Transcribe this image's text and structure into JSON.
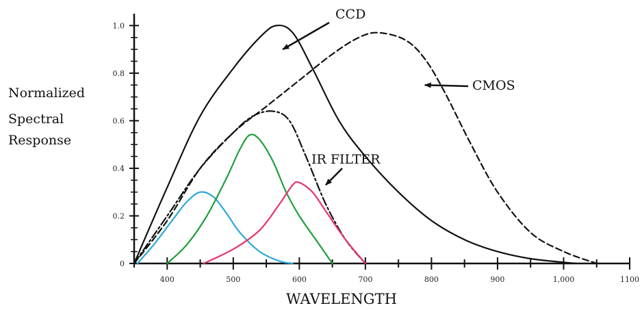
{
  "chart_data": {
    "type": "line",
    "title": "",
    "xlabel": "WAVELENGTH",
    "ylabel": [
      "Normalized",
      "Spectral",
      "Response"
    ],
    "xlim": [
      350,
      1100
    ],
    "ylim": [
      0,
      1.05
    ],
    "xticks": [
      400,
      500,
      600,
      700,
      800,
      900,
      1000,
      1100
    ],
    "xtick_labels": [
      "400",
      "500",
      "600",
      "700",
      "800",
      "900",
      "1,000",
      "1100"
    ],
    "yticks": [
      0,
      0.2,
      0.4,
      0.6,
      0.8,
      1.0
    ],
    "ytick_labels": [
      "0",
      "0.2",
      "0.4",
      "0.6",
      "0.8",
      "1.0"
    ],
    "grid": false,
    "series": [
      {
        "name": "CCD",
        "color": "#111111",
        "dash": "solid",
        "points": [
          [
            350,
            0
          ],
          [
            400,
            0.32
          ],
          [
            450,
            0.62
          ],
          [
            500,
            0.82
          ],
          [
            540,
            0.95
          ],
          [
            565,
            1.0
          ],
          [
            590,
            0.97
          ],
          [
            620,
            0.82
          ],
          [
            660,
            0.6
          ],
          [
            700,
            0.45
          ],
          [
            750,
            0.3
          ],
          [
            800,
            0.18
          ],
          [
            850,
            0.1
          ],
          [
            900,
            0.05
          ],
          [
            950,
            0.02
          ],
          [
            1000,
            0.005
          ],
          [
            1020,
            0
          ]
        ]
      },
      {
        "name": "CMOS",
        "color": "#111111",
        "dash": "dashed",
        "points": [
          [
            350,
            0
          ],
          [
            400,
            0.18
          ],
          [
            450,
            0.4
          ],
          [
            500,
            0.55
          ],
          [
            550,
            0.66
          ],
          [
            600,
            0.77
          ],
          [
            650,
            0.88
          ],
          [
            690,
            0.95
          ],
          [
            720,
            0.97
          ],
          [
            760,
            0.94
          ],
          [
            790,
            0.86
          ],
          [
            820,
            0.72
          ],
          [
            860,
            0.5
          ],
          [
            900,
            0.3
          ],
          [
            950,
            0.13
          ],
          [
            1000,
            0.05
          ],
          [
            1050,
            0
          ]
        ]
      },
      {
        "name": "IR FILTER",
        "color": "#111111",
        "dash": "dashdot",
        "points": [
          [
            350,
            0
          ],
          [
            400,
            0.2
          ],
          [
            450,
            0.4
          ],
          [
            500,
            0.55
          ],
          [
            530,
            0.62
          ],
          [
            560,
            0.64
          ],
          [
            585,
            0.6
          ],
          [
            610,
            0.45
          ],
          [
            640,
            0.25
          ],
          [
            670,
            0.1
          ],
          [
            700,
            0
          ]
        ]
      },
      {
        "color": "#2aa8d8",
        "dash": "solid",
        "points": [
          [
            355,
            0
          ],
          [
            380,
            0.08
          ],
          [
            410,
            0.19
          ],
          [
            430,
            0.26
          ],
          [
            450,
            0.3
          ],
          [
            470,
            0.28
          ],
          [
            490,
            0.21
          ],
          [
            510,
            0.13
          ],
          [
            540,
            0.05
          ],
          [
            570,
            0.01
          ],
          [
            590,
            0
          ]
        ]
      },
      {
        "color": "#1f9e3a",
        "dash": "solid",
        "points": [
          [
            400,
            0
          ],
          [
            430,
            0.08
          ],
          [
            460,
            0.2
          ],
          [
            490,
            0.36
          ],
          [
            510,
            0.48
          ],
          [
            525,
            0.54
          ],
          [
            540,
            0.52
          ],
          [
            560,
            0.43
          ],
          [
            580,
            0.3
          ],
          [
            600,
            0.2
          ],
          [
            630,
            0.08
          ],
          [
            650,
            0
          ]
        ]
      },
      {
        "color": "#e8336a",
        "dash": "solid",
        "points": [
          [
            455,
            0
          ],
          [
            500,
            0.06
          ],
          [
            540,
            0.14
          ],
          [
            570,
            0.25
          ],
          [
            590,
            0.33
          ],
          [
            600,
            0.34
          ],
          [
            620,
            0.3
          ],
          [
            640,
            0.22
          ],
          [
            670,
            0.1
          ],
          [
            700,
            0
          ]
        ]
      }
    ],
    "annotations": [
      {
        "text": "CCD",
        "arrow_to": [
          575,
          0.9
        ]
      },
      {
        "text": "CMOS",
        "arrow_to": [
          790,
          0.75
        ]
      },
      {
        "text": "IR FILTER",
        "arrow_to": [
          640,
          0.33
        ]
      }
    ]
  }
}
